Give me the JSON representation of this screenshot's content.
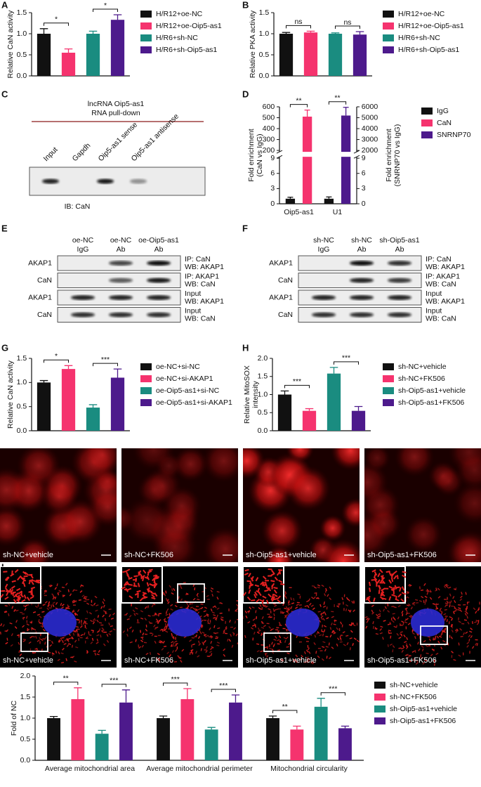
{
  "chart_data": [
    {
      "type": "bar",
      "label": "A",
      "ylabel": "Relative CaN activity",
      "series": [
        {
          "name": "H/R12+oe-NC",
          "color": "#111111",
          "values": [
            1.0
          ],
          "errors": [
            0.12
          ]
        },
        {
          "name": "H/R12+oe-Oip5-as1",
          "color": "#f5336e",
          "values": [
            0.55
          ],
          "errors": [
            0.09
          ]
        },
        {
          "name": "H/R6+sh-NC",
          "color": "#1a8c80",
          "values": [
            1.0
          ],
          "errors": [
            0.06
          ]
        },
        {
          "name": "H/R6+sh-Oip5-as1",
          "color": "#4d1a8c",
          "values": [
            1.33
          ],
          "errors": [
            0.12
          ]
        }
      ],
      "ylim": [
        0,
        1.5
      ],
      "yticks": [
        {
          "value": 0,
          "label": "0.0"
        },
        0.5,
        {
          "value": 1,
          "label": "1.0"
        },
        1.5
      ],
      "annotations": [
        {
          "text": "*",
          "series": [
            0,
            1
          ]
        },
        {
          "text": "*",
          "series": [
            2,
            3
          ]
        }
      ]
    },
    {
      "type": "bar",
      "label": "B",
      "ylabel": "Relative PKA activity",
      "series": [
        {
          "name": "H/R12+oe-NC",
          "color": "#111111",
          "values": [
            1.0
          ],
          "errors": [
            0.03
          ]
        },
        {
          "name": "H/R12+oe-Oip5-as1",
          "color": "#f5336e",
          "values": [
            1.03
          ],
          "errors": [
            0.03
          ]
        },
        {
          "name": "H/R6+sh-NC",
          "color": "#1a8c80",
          "values": [
            1.0
          ],
          "errors": [
            0.02
          ]
        },
        {
          "name": "H/R6+sh-Oip5-as1",
          "color": "#4d1a8c",
          "values": [
            0.98
          ],
          "errors": [
            0.07
          ]
        }
      ],
      "ylim": [
        0,
        1.5
      ],
      "yticks": [
        {
          "value": 0,
          "label": "0.0"
        },
        0.5,
        {
          "value": 1,
          "label": "1.0"
        },
        1.5
      ],
      "annotations": [
        {
          "text": "ns",
          "series": [
            0,
            1
          ]
        },
        {
          "text": "ns",
          "series": [
            2,
            3
          ]
        }
      ]
    },
    {
      "type": "bar",
      "label": "D",
      "ylabel": [
        "Fold enrichment",
        "(CaN vs IgG)"
      ],
      "y2label": [
        "Fold enrichment",
        "(SNRNP70 vs IgG)"
      ],
      "categories": [
        "Oip5-as1",
        "U1"
      ],
      "series": [
        {
          "name": "IgG",
          "color": "#111111",
          "values": [
            1.0,
            1.0
          ],
          "errors": [
            0.3,
            0.35
          ]
        },
        {
          "name": "CaN",
          "color": "#f5336e",
          "values": [
            510,
            null
          ],
          "errors": [
            60,
            null
          ]
        },
        {
          "name": "SNRNP70",
          "color": "#4d1a8c",
          "axis": "y2",
          "values": [
            null,
            5200
          ],
          "errors": [
            null,
            750
          ]
        }
      ],
      "ylim": [
        0,
        600
      ],
      "ybreak": [
        9,
        200
      ],
      "yticks": [
        0,
        3,
        6,
        9,
        200,
        300,
        400,
        500,
        600
      ],
      "y2lim": [
        0,
        6000
      ],
      "y2break": [
        9,
        2000
      ],
      "y2ticks": [
        0,
        3,
        6,
        9,
        2000,
        3000,
        4000,
        5000,
        6000
      ],
      "annotations": [
        {
          "text": "**",
          "category": 0,
          "series": [
            0,
            1
          ]
        },
        {
          "text": "**",
          "category": 1,
          "series": [
            0,
            2
          ]
        }
      ]
    },
    {
      "type": "bar",
      "label": "G",
      "ylabel": "Relative CaN activity",
      "series": [
        {
          "name": "oe-NC+si-NC",
          "color": "#111111",
          "values": [
            1.0
          ],
          "errors": [
            0.04
          ]
        },
        {
          "name": "oe-NC+si-AKAP1",
          "color": "#f5336e",
          "values": [
            1.28
          ],
          "errors": [
            0.07
          ]
        },
        {
          "name": "oe-Oip5-as1+si-NC",
          "color": "#1a8c80",
          "values": [
            0.48
          ],
          "errors": [
            0.06
          ]
        },
        {
          "name": "oe-Oip5-as1+si-AKAP1",
          "color": "#4d1a8c",
          "values": [
            1.1
          ],
          "errors": [
            0.18
          ]
        }
      ],
      "ylim": [
        0,
        1.5
      ],
      "yticks": [
        {
          "value": 0,
          "label": "0.0"
        },
        0.5,
        {
          "value": 1,
          "label": "1.0"
        },
        1.5
      ],
      "annotations": [
        {
          "text": "*",
          "series": [
            0,
            1
          ]
        },
        {
          "text": "***",
          "series": [
            2,
            3
          ]
        }
      ]
    },
    {
      "type": "bar",
      "label": "H",
      "ylabel": [
        "Relative MitoSOX",
        "intensity"
      ],
      "series": [
        {
          "name": "sh-NC+vehicle",
          "color": "#111111",
          "values": [
            1.0
          ],
          "errors": [
            0.1
          ]
        },
        {
          "name": "sh-NC+FK506",
          "color": "#f5336e",
          "values": [
            0.55
          ],
          "errors": [
            0.06
          ]
        },
        {
          "name": "sh-Oip5-as1+vehicle",
          "color": "#1a8c80",
          "values": [
            1.58
          ],
          "errors": [
            0.17
          ]
        },
        {
          "name": "sh-Oip5-as1+FK506",
          "color": "#4d1a8c",
          "values": [
            0.55
          ],
          "errors": [
            0.12
          ]
        }
      ],
      "ylim": [
        0,
        2
      ],
      "yticks": [
        {
          "value": 0,
          "label": "0.0"
        },
        0.5,
        {
          "value": 1,
          "label": "1.0"
        },
        1.5,
        {
          "value": 2,
          "label": "2.0"
        }
      ],
      "annotations": [
        {
          "text": "***",
          "series": [
            0,
            1
          ]
        },
        {
          "text": "***",
          "series": [
            2,
            3
          ]
        }
      ]
    },
    {
      "type": "bar",
      "ylabel": "Fold of NC",
      "categories": [
        "Average mitochondrial area",
        "Average mitochondrial perimeter",
        "Mitochondrial circularity"
      ],
      "series": [
        {
          "name": "sh-NC+vehicle",
          "color": "#111111",
          "values": [
            1.0,
            1.0,
            1.0
          ],
          "errors": [
            0.04,
            0.05,
            0.05
          ]
        },
        {
          "name": "sh-NC+FK506",
          "color": "#f5336e",
          "values": [
            1.45,
            1.45,
            0.73
          ],
          "errors": [
            0.27,
            0.25,
            0.08
          ]
        },
        {
          "name": "sh-Oip5-as1+vehicle",
          "color": "#1a8c80",
          "values": [
            0.63,
            0.73,
            1.27
          ],
          "errors": [
            0.08,
            0.05,
            0.2
          ]
        },
        {
          "name": "sh-Oip5-as1+FK506",
          "color": "#4d1a8c",
          "values": [
            1.37,
            1.37,
            0.76
          ],
          "errors": [
            0.3,
            0.18,
            0.05
          ]
        }
      ],
      "ylim": [
        0,
        2
      ],
      "yticks": [
        {
          "value": 0,
          "label": "0.0"
        },
        0.5,
        {
          "value": 1,
          "label": "1.0"
        },
        1.5,
        {
          "value": 2,
          "label": "2.0"
        }
      ],
      "annotations": [
        {
          "text": "**",
          "category": 0,
          "series": [
            0,
            1
          ]
        },
        {
          "text": "***",
          "category": 0,
          "series": [
            2,
            3
          ]
        },
        {
          "text": "***",
          "category": 1,
          "series": [
            0,
            1
          ]
        },
        {
          "text": "***",
          "category": 1,
          "series": [
            2,
            3
          ]
        },
        {
          "text": "**",
          "category": 2,
          "series": [
            0,
            1
          ]
        },
        {
          "text": "***",
          "category": 2,
          "series": [
            2,
            3
          ]
        }
      ]
    }
  ],
  "blots": [
    {
      "label": "C",
      "title": [
        "lncRNA Oip5-as1",
        "RNA pull-down"
      ],
      "lanes": [
        "Input",
        "Gapdh",
        "Oip5-as1 sense",
        "Oip5-as1 antisense"
      ],
      "footer": "IB: CaN"
    },
    {
      "label": "E",
      "lanes": [
        [
          "oe-NC",
          "IgG"
        ],
        [
          "oe-NC",
          "Ab"
        ],
        [
          "oe-Oip5-as1",
          "Ab"
        ]
      ],
      "rows": [
        {
          "protein": "AKAP1",
          "note": [
            "IP: CaN",
            "WB: AKAP1"
          ]
        },
        {
          "protein": "CaN",
          "note": [
            "IP: AKAP1",
            "WB: CaN"
          ]
        },
        {
          "protein": "AKAP1",
          "note": [
            "Input",
            "WB: AKAP1"
          ]
        },
        {
          "protein": "CaN",
          "note": [
            "Input",
            "WB: CaN"
          ]
        }
      ]
    },
    {
      "label": "F",
      "lanes": [
        [
          "sh-NC",
          "IgG"
        ],
        [
          "sh-NC",
          "Ab"
        ],
        [
          "sh-Oip5-as1",
          "Ab"
        ]
      ],
      "rows": [
        {
          "protein": "AKAP1",
          "note": [
            "IP: CaN",
            "WB: AKAP1"
          ]
        },
        {
          "protein": "CaN",
          "note": [
            "IP: AKAP1",
            "WB: CaN"
          ]
        },
        {
          "protein": "AKAP1",
          "note": [
            "Input",
            "WB: AKAP1"
          ]
        },
        {
          "protein": "CaN",
          "note": [
            "Input",
            "WB: CaN"
          ]
        }
      ]
    }
  ],
  "micrographs": {
    "mitosox": {
      "captions": [
        "sh-NC+vehicle",
        "sh-NC+FK506",
        "sh-Oip5-as1+vehicle",
        "sh-Oip5-as1+FK506"
      ]
    },
    "confocal": {
      "label": "I",
      "captions": [
        "sh-NC+vehicle",
        "sh-NC+FK506",
        "sh-Oip5-as1+vehicle",
        "sh-Oip5-as1+FK506"
      ]
    }
  }
}
